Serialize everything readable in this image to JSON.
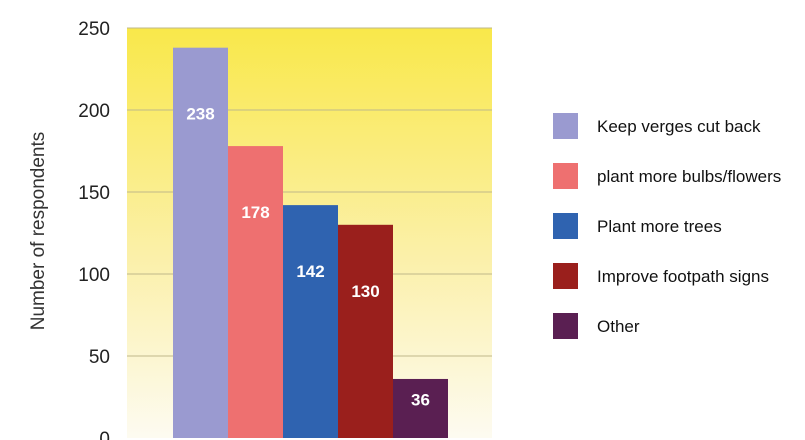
{
  "chart_data": {
    "type": "bar",
    "categories": [
      "Keep verges cut back",
      "plant more bulbs/flowers",
      "Plant more trees",
      "Improve footpath signs",
      "Other"
    ],
    "values": [
      238,
      178,
      142,
      130,
      36
    ],
    "data_labels": [
      "238",
      "178",
      "142",
      "130",
      "36"
    ],
    "colors": [
      "#9a9ad0",
      "#ee7070",
      "#2f63b0",
      "#9a1f1c",
      "#5a1f52"
    ],
    "title": "",
    "xlabel": "",
    "ylabel": "Number of respondents",
    "ylim": [
      0,
      250
    ],
    "yticks": [
      "0",
      "50",
      "100",
      "150",
      "200",
      "250"
    ],
    "grid": true,
    "legend_position": "right",
    "background": "yellow gradient"
  }
}
